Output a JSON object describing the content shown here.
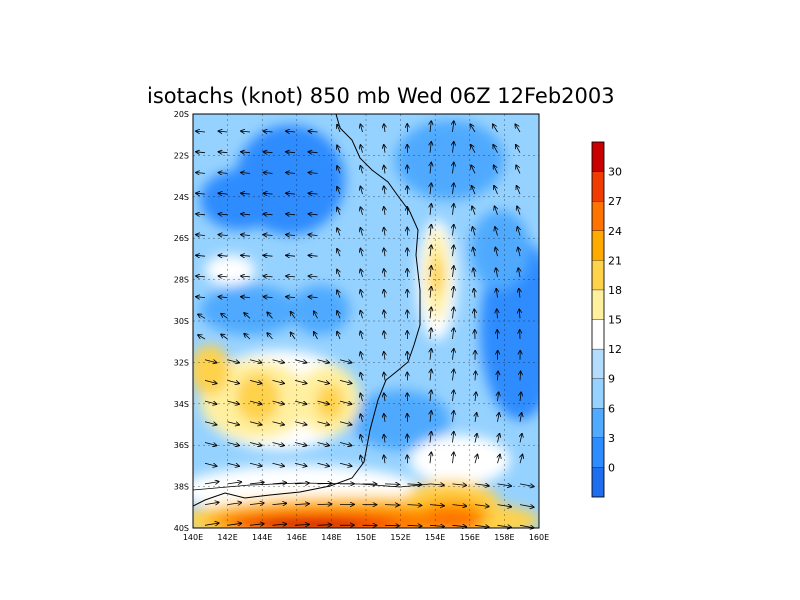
{
  "title": "isotachs (knot) 850 mb Wed 06Z 12Feb2003",
  "map": {
    "lon_range": [
      140,
      160
    ],
    "lat_range": [
      -40,
      -20
    ],
    "x_tick_labels": [
      "140E",
      "142E",
      "144E",
      "146E",
      "148E",
      "150E",
      "152E",
      "154E",
      "156E",
      "158E",
      "160E"
    ],
    "y_tick_labels": [
      "20S",
      "22S",
      "24S",
      "26S",
      "28S",
      "30S",
      "32S",
      "34S",
      "36S",
      "38S",
      "40S"
    ],
    "gridlines": true
  },
  "colorbar": {
    "levels": [
      "0",
      "3",
      "6",
      "9",
      "12",
      "15",
      "18",
      "21",
      "24",
      "27",
      "30"
    ],
    "colors": [
      "#1e6ef0",
      "#2d8cff",
      "#50aaff",
      "#96d2ff",
      "#b4dcff",
      "#ffffff",
      "#fff0a0",
      "#ffd24b",
      "#ffaa00",
      "#ff7300",
      "#f03c00",
      "#c80000"
    ]
  }
}
